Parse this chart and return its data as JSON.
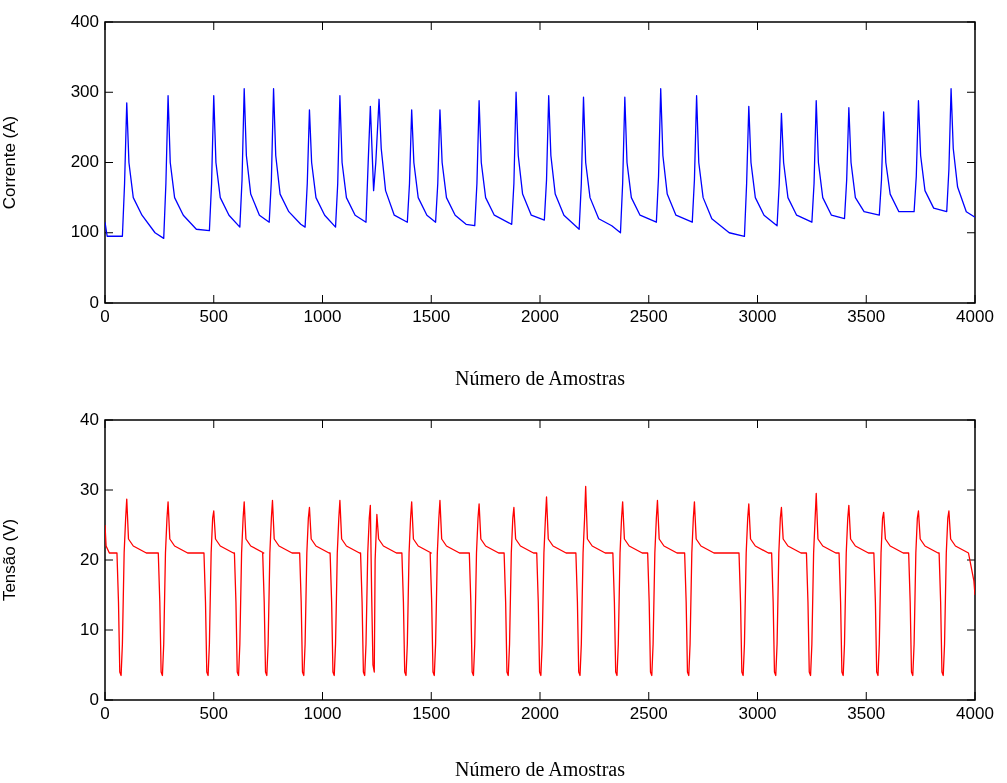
{
  "chart_data": [
    {
      "type": "line",
      "xlabel": "Número de Amostras",
      "ylabel": "Corrente (A)",
      "xlim": [
        0,
        4000
      ],
      "xticks": [
        0,
        500,
        1000,
        1500,
        2000,
        2500,
        3000,
        3500,
        4000
      ],
      "ylim": [
        0,
        400
      ],
      "yticks": [
        0,
        100,
        200,
        300,
        400
      ],
      "marker": "none",
      "series": [
        {
          "color": "#0000ff",
          "x": [
            0,
            10,
            60,
            80,
            90,
            100,
            110,
            130,
            170,
            230,
            270,
            280,
            290,
            300,
            320,
            360,
            420,
            480,
            490,
            500,
            510,
            530,
            570,
            620,
            630,
            640,
            650,
            670,
            710,
            755,
            765,
            775,
            785,
            805,
            845,
            900,
            920,
            930,
            940,
            950,
            970,
            1010,
            1060,
            1070,
            1080,
            1090,
            1110,
            1150,
            1200,
            1210,
            1220,
            1235,
            1245,
            1260,
            1270,
            1290,
            1330,
            1390,
            1400,
            1410,
            1420,
            1440,
            1480,
            1520,
            1530,
            1540,
            1550,
            1570,
            1610,
            1660,
            1700,
            1710,
            1720,
            1730,
            1750,
            1790,
            1870,
            1880,
            1890,
            1900,
            1920,
            1960,
            2020,
            2030,
            2040,
            2050,
            2070,
            2110,
            2180,
            2190,
            2200,
            2210,
            2230,
            2270,
            2330,
            2370,
            2380,
            2390,
            2400,
            2420,
            2460,
            2535,
            2545,
            2555,
            2565,
            2585,
            2625,
            2700,
            2710,
            2720,
            2730,
            2750,
            2790,
            2870,
            2940,
            2950,
            2960,
            2970,
            2990,
            3030,
            3090,
            3100,
            3110,
            3120,
            3140,
            3180,
            3250,
            3260,
            3270,
            3280,
            3300,
            3340,
            3400,
            3410,
            3420,
            3430,
            3450,
            3490,
            3560,
            3570,
            3580,
            3590,
            3610,
            3650,
            3720,
            3730,
            3740,
            3750,
            3770,
            3810,
            3870,
            3880,
            3890,
            3900,
            3920,
            3960,
            4000
          ],
          "values": [
            115,
            95,
            95,
            95,
            170,
            285,
            200,
            150,
            125,
            100,
            92,
            170,
            295,
            200,
            150,
            125,
            105,
            103,
            170,
            295,
            200,
            150,
            125,
            108,
            175,
            305,
            210,
            155,
            125,
            115,
            175,
            305,
            210,
            155,
            130,
            112,
            108,
            170,
            275,
            200,
            150,
            125,
            108,
            170,
            295,
            200,
            150,
            125,
            115,
            200,
            280,
            160,
            200,
            290,
            220,
            160,
            125,
            115,
            170,
            275,
            200,
            150,
            125,
            115,
            170,
            275,
            200,
            150,
            125,
            112,
            110,
            170,
            288,
            200,
            150,
            125,
            112,
            170,
            300,
            210,
            155,
            125,
            118,
            175,
            295,
            210,
            155,
            125,
            105,
            170,
            293,
            200,
            150,
            120,
            110,
            100,
            170,
            293,
            200,
            150,
            125,
            115,
            180,
            305,
            210,
            155,
            125,
            115,
            175,
            295,
            200,
            150,
            120,
            100,
            95,
            170,
            280,
            200,
            150,
            125,
            110,
            170,
            270,
            200,
            150,
            125,
            115,
            170,
            288,
            200,
            150,
            125,
            120,
            175,
            278,
            200,
            150,
            130,
            125,
            175,
            272,
            200,
            155,
            130,
            130,
            180,
            288,
            210,
            160,
            135,
            130,
            190,
            305,
            220,
            165,
            130,
            122
          ]
        }
      ]
    },
    {
      "type": "line",
      "xlabel": "Número de Amostras",
      "ylabel": "Tensão (V)",
      "xlim": [
        0,
        4000
      ],
      "xticks": [
        0,
        500,
        1000,
        1500,
        2000,
        2500,
        3000,
        3500,
        4000
      ],
      "ylim": [
        0,
        40
      ],
      "yticks": [
        0,
        10,
        20,
        30,
        40
      ],
      "marker": "none",
      "series": [
        {
          "color": "#ff0000",
          "x": [
            0,
            5,
            20,
            55,
            62,
            68,
            74,
            80,
            88,
            95,
            100,
            108,
            130,
            190,
            245,
            252,
            258,
            264,
            270,
            278,
            285,
            290,
            298,
            320,
            380,
            455,
            462,
            468,
            474,
            480,
            488,
            495,
            500,
            508,
            530,
            590,
            595,
            602,
            608,
            614,
            620,
            628,
            635,
            640,
            648,
            670,
            730,
            725,
            732,
            738,
            744,
            750,
            758,
            765,
            770,
            778,
            800,
            860,
            895,
            902,
            908,
            914,
            920,
            928,
            935,
            940,
            948,
            970,
            1030,
            1035,
            1042,
            1048,
            1054,
            1060,
            1068,
            1075,
            1080,
            1088,
            1110,
            1170,
            1175,
            1182,
            1188,
            1194,
            1200,
            1208,
            1215,
            1220,
            1226,
            1232,
            1238,
            1242,
            1250,
            1258,
            1280,
            1340,
            1365,
            1372,
            1378,
            1384,
            1390,
            1398,
            1405,
            1410,
            1418,
            1440,
            1500,
            1495,
            1502,
            1508,
            1514,
            1520,
            1528,
            1535,
            1540,
            1548,
            1570,
            1630,
            1675,
            1682,
            1688,
            1694,
            1700,
            1708,
            1715,
            1720,
            1728,
            1750,
            1810,
            1835,
            1842,
            1848,
            1854,
            1860,
            1868,
            1875,
            1880,
            1888,
            1910,
            1970,
            1985,
            1992,
            1998,
            2004,
            2010,
            2018,
            2025,
            2030,
            2038,
            2060,
            2120,
            2165,
            2172,
            2178,
            2184,
            2190,
            2198,
            2205,
            2210,
            2218,
            2240,
            2300,
            2335,
            2342,
            2348,
            2354,
            2360,
            2368,
            2375,
            2380,
            2388,
            2410,
            2470,
            2495,
            2502,
            2508,
            2514,
            2520,
            2528,
            2535,
            2540,
            2548,
            2570,
            2630,
            2665,
            2672,
            2678,
            2684,
            2690,
            2698,
            2705,
            2710,
            2718,
            2740,
            2800,
            2915,
            2922,
            2928,
            2934,
            2940,
            2948,
            2955,
            2960,
            2968,
            2990,
            3050,
            3065,
            3072,
            3078,
            3084,
            3090,
            3098,
            3105,
            3110,
            3118,
            3140,
            3200,
            3225,
            3232,
            3238,
            3244,
            3250,
            3258,
            3265,
            3270,
            3278,
            3300,
            3360,
            3375,
            3382,
            3388,
            3394,
            3400,
            3408,
            3415,
            3420,
            3428,
            3450,
            3510,
            3535,
            3542,
            3548,
            3554,
            3560,
            3568,
            3575,
            3580,
            3588,
            3610,
            3670,
            3695,
            3702,
            3708,
            3714,
            3720,
            3728,
            3735,
            3740,
            3748,
            3770,
            3830,
            3835,
            3842,
            3848,
            3854,
            3860,
            3868,
            3875,
            3880,
            3888,
            3910,
            3970,
            3995,
            4000
          ],
          "values": [
            25,
            22,
            21,
            21,
            14,
            4,
            3.5,
            8,
            21,
            26,
            28.7,
            23,
            22,
            21,
            21,
            14,
            4,
            3.5,
            8,
            21,
            26,
            28.3,
            23,
            22,
            21,
            21,
            14,
            4,
            3.5,
            8,
            21,
            26,
            27,
            23,
            22,
            21,
            21,
            14,
            4,
            3.5,
            8,
            21,
            26,
            28.3,
            23,
            22,
            21,
            21,
            14,
            4,
            3.5,
            8,
            21,
            26,
            28.5,
            23,
            22,
            21,
            21,
            14,
            4,
            3.5,
            8,
            21,
            26,
            27.5,
            23,
            22,
            21,
            21,
            14,
            4,
            3.5,
            8,
            21,
            26,
            28.5,
            23,
            22,
            21,
            21,
            14,
            4,
            3.5,
            8,
            21,
            26,
            27.8,
            15,
            5,
            4,
            20,
            26.5,
            23,
            22,
            21,
            21,
            14,
            4,
            3.5,
            8,
            21,
            26,
            28.3,
            23,
            22,
            21,
            21,
            14,
            4,
            3.5,
            8,
            21,
            26,
            28.5,
            23,
            22,
            21,
            21,
            14,
            4,
            3.5,
            8,
            21,
            26,
            28,
            23,
            22,
            21,
            21,
            14,
            4,
            3.5,
            8,
            21,
            26,
            27.5,
            23,
            22,
            21,
            21,
            14,
            4,
            3.5,
            8,
            21,
            26,
            29,
            23,
            22,
            21,
            21,
            14,
            4,
            3.5,
            8,
            21,
            26,
            30.5,
            23,
            22,
            21,
            21,
            14,
            4,
            3.5,
            8,
            21,
            26,
            28.3,
            23,
            22,
            21,
            21,
            14,
            4,
            3.5,
            8,
            21,
            26,
            28.5,
            23,
            22,
            21,
            21,
            14,
            4,
            3.5,
            8,
            21,
            26,
            28.3,
            23,
            22,
            21,
            21,
            14,
            4,
            3.5,
            8,
            21,
            26,
            28,
            23,
            22,
            21,
            21,
            14,
            4,
            3.5,
            8,
            21,
            26,
            27.5,
            23,
            22,
            21,
            21,
            14,
            4,
            3.5,
            8,
            21,
            26,
            29.5,
            23,
            22,
            21,
            21,
            14,
            4,
            3.5,
            8,
            21,
            26,
            27.8,
            23,
            22,
            21,
            21,
            14,
            4,
            3.5,
            8,
            21,
            26,
            26.8,
            23,
            22,
            21,
            21,
            14,
            4,
            3.5,
            8,
            21,
            26,
            27,
            23,
            22,
            21,
            21,
            14,
            4,
            3.5,
            8,
            21,
            26,
            27,
            23,
            22,
            21,
            17,
            15
          ]
        }
      ]
    }
  ]
}
